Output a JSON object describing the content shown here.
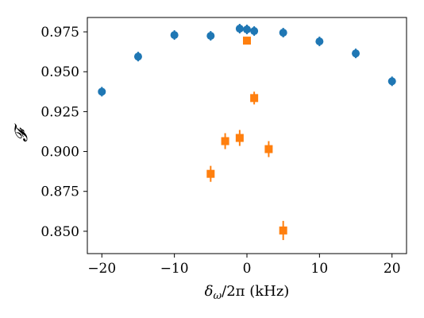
{
  "chart_data": {
    "type": "scatter",
    "xlabel": "δ_ω/2π (kHz)",
    "xlabel_parts": {
      "main": "δ",
      "sub": "ω",
      "rest": "/2π (kHz)"
    },
    "ylabel": "𝓕",
    "xlim": [
      -22,
      22
    ],
    "ylim": [
      0.836,
      0.984
    ],
    "xticks": [
      -20,
      -10,
      0,
      10,
      20
    ],
    "xtick_labels": [
      "−20",
      "−10",
      "0",
      "10",
      "20"
    ],
    "yticks": [
      0.85,
      0.875,
      0.9,
      0.925,
      0.95,
      0.975
    ],
    "ytick_labels": [
      "0.850",
      "0.875",
      "0.900",
      "0.925",
      "0.950",
      "0.975"
    ],
    "grid": false,
    "series": [
      {
        "marker": "circle",
        "color": "#1f77b4",
        "x": [
          -20,
          -15,
          -10,
          -5,
          -1,
          0,
          1,
          5,
          10,
          15,
          20
        ],
        "y": [
          0.9375,
          0.9595,
          0.973,
          0.9725,
          0.977,
          0.9765,
          0.9755,
          0.9745,
          0.969,
          0.9615,
          0.944
        ],
        "yerr": [
          0.003,
          0.003,
          0.003,
          0.003,
          0.003,
          0.003,
          0.003,
          0.003,
          0.003,
          0.003,
          0.003
        ]
      },
      {
        "marker": "square",
        "color": "#ff7f0e",
        "x": [
          -5,
          -3,
          -1,
          0,
          1,
          3,
          5
        ],
        "y": [
          0.886,
          0.9065,
          0.9085,
          0.9695,
          0.9335,
          0.9015,
          0.8505
        ],
        "yerr": [
          0.005,
          0.005,
          0.005,
          0.002,
          0.004,
          0.005,
          0.006
        ]
      }
    ]
  }
}
